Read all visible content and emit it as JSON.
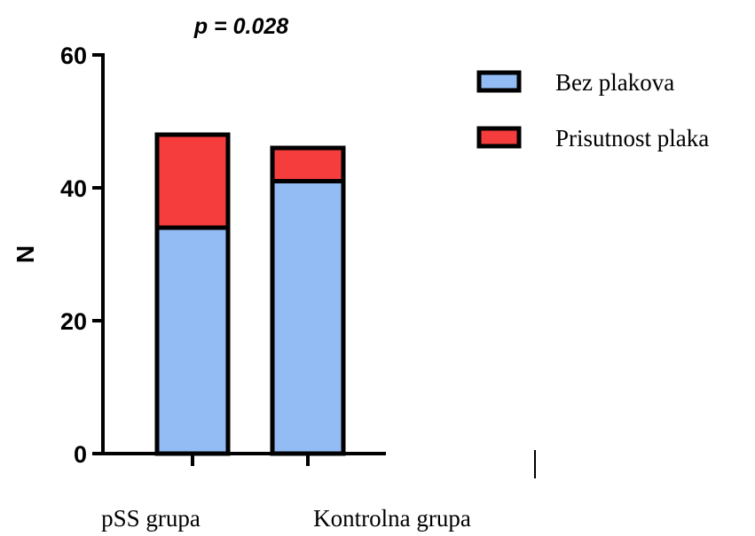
{
  "chart_data": {
    "type": "bar",
    "stacked": true,
    "title": "p = 0.028",
    "ylabel": "N",
    "xlabel": "",
    "ylim": [
      0,
      60
    ],
    "yticks": [
      0,
      20,
      40,
      60
    ],
    "categories": [
      "pSS grupa",
      "Kontrolna grupa"
    ],
    "series": [
      {
        "name": "Bez plakova",
        "values": [
          34,
          41
        ],
        "color": "#93BCF5"
      },
      {
        "name": "Prisutnost plaka",
        "values": [
          14,
          5
        ],
        "color": "#F53D3D"
      }
    ],
    "legend": "right",
    "grid": false
  }
}
